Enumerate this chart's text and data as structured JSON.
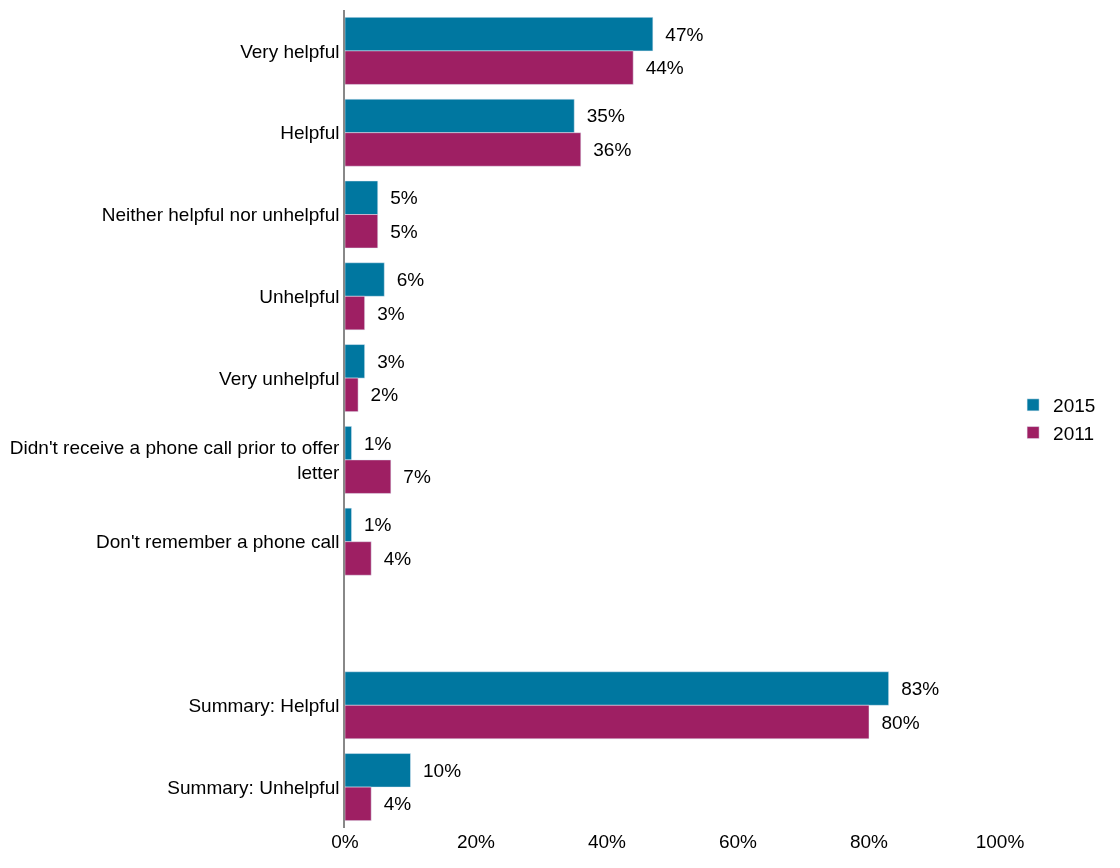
{
  "chart_data": {
    "type": "bar",
    "orientation": "horizontal",
    "categories": [
      "Very helpful",
      "Helpful",
      "Neither helpful nor unhelpful",
      "Unhelpful",
      "Very unhelpful",
      "Didn't receive a phone call prior to offer letter",
      "Don't remember a phone call",
      null,
      "Summary: Helpful",
      "Summary: Unhelpful"
    ],
    "series": [
      {
        "name": "2015",
        "color": "#0077a0",
        "values": [
          47,
          35,
          5,
          6,
          3,
          1,
          1,
          null,
          83,
          10
        ],
        "value_labels": [
          "47%",
          "35%",
          "5%",
          "6%",
          "3%",
          "1%",
          "1%",
          null,
          "83%",
          "10%"
        ]
      },
      {
        "name": "2011",
        "color": "#9e1f63",
        "values": [
          44,
          36,
          5,
          3,
          2,
          7,
          4,
          null,
          80,
          4
        ],
        "value_labels": [
          "44%",
          "36%",
          "5%",
          "3%",
          "2%",
          "7%",
          "4%",
          null,
          "80%",
          "4%"
        ]
      }
    ],
    "xlim": [
      0,
      100
    ],
    "xticks": [
      {
        "value": 0,
        "label": "0%"
      },
      {
        "value": 20,
        "label": "20%"
      },
      {
        "value": 40,
        "label": "40%"
      },
      {
        "value": 60,
        "label": "60%"
      },
      {
        "value": 80,
        "label": "80%"
      },
      {
        "value": 100,
        "label": "100%"
      }
    ],
    "legend": "right"
  }
}
